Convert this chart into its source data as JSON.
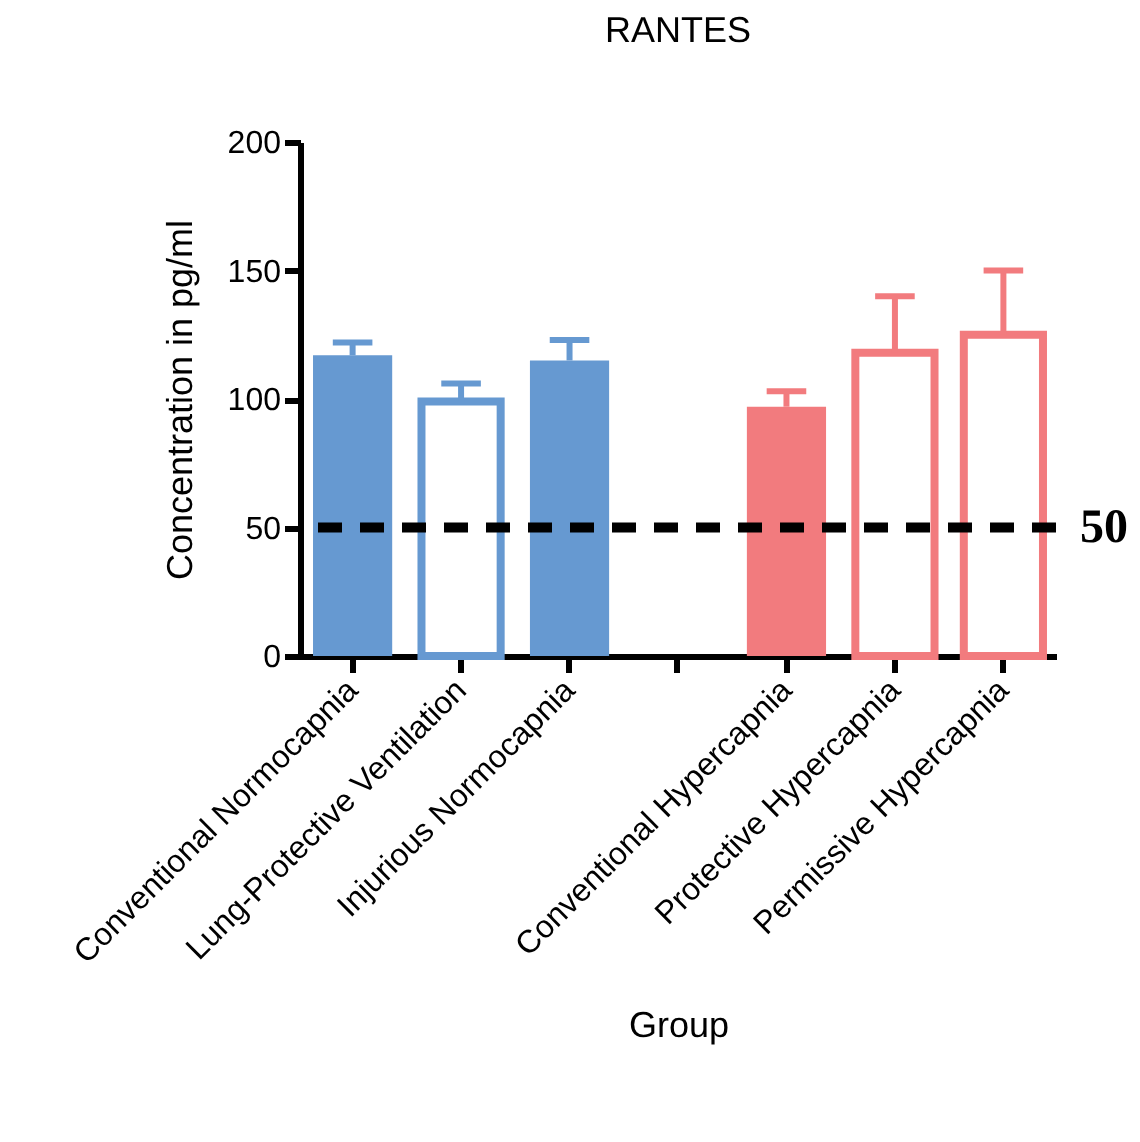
{
  "chart_data": {
    "type": "bar",
    "title": "RANTES",
    "xlabel": "Group",
    "ylabel": "Concentration in pg/ml",
    "categories": [
      "Conventional Normocapnia",
      "Lung-Protective Ventilation",
      "Injurious Normocapnia",
      null,
      "Conventional Hypercapnia",
      "Protective Hypercapnia",
      "Permissive Hypercapnia"
    ],
    "series": [
      {
        "values": [
          117,
          null,
          115,
          null,
          97,
          null,
          null
        ],
        "colors": [
          "#6699d1",
          null,
          "#6699d1",
          null,
          "#f27b7e",
          null,
          null
        ],
        "errors": [
          [
            117,
            122
          ],
          null,
          [
            115,
            123
          ],
          null,
          [
            97,
            103
          ],
          null,
          null
        ]
      },
      {
        "values": [
          null,
          99,
          null,
          null,
          null,
          118,
          125
        ],
        "colors": [
          null,
          "#6699d1",
          null,
          null,
          null,
          "#f27b7e",
          "#f27b7e"
        ],
        "errors": [
          null,
          [
            99,
            106
          ],
          null,
          null,
          null,
          [
            118,
            140
          ],
          [
            125,
            150
          ]
        ]
      }
    ],
    "ylim": [
      0,
      200
    ],
    "yticks": [
      0,
      50,
      100,
      150,
      200
    ],
    "ref_lines": [
      {
        "axis": "y",
        "value": 50,
        "label": "50",
        "color": "#000000",
        "line_style": "dashed"
      }
    ]
  }
}
